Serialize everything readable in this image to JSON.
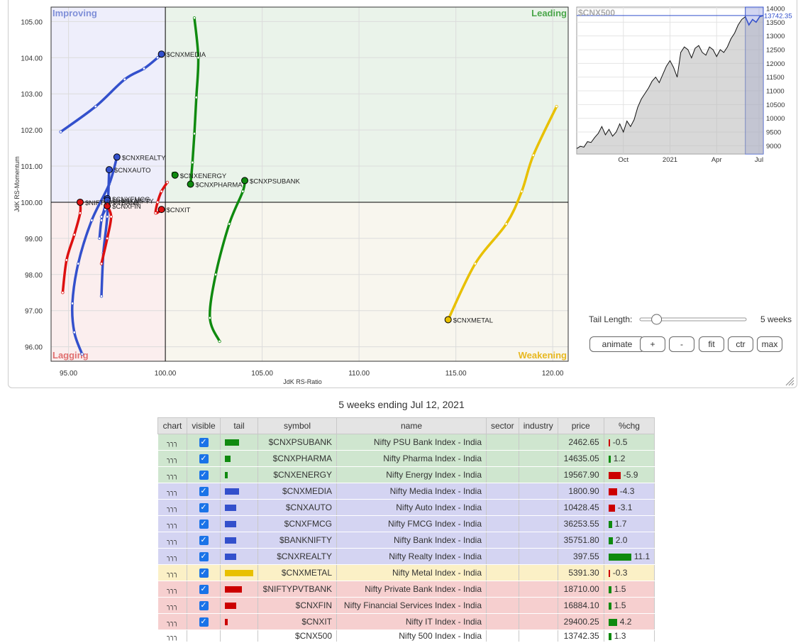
{
  "chart_data": [
    {
      "type": "scatter",
      "subtype": "relative-rotation-graph",
      "xlabel": "JdK RS-Ratio",
      "ylabel": "JdK RS-Momentum",
      "xlim": [
        94.1,
        120.8
      ],
      "ylim": [
        95.6,
        105.4
      ],
      "x_ticks": [
        "95.00",
        "100.00",
        "105.00",
        "110.00",
        "115.00",
        "120.00"
      ],
      "y_ticks": [
        "96.00",
        "97.00",
        "98.00",
        "99.00",
        "100.00",
        "101.00",
        "102.00",
        "103.00",
        "104.00",
        "105.00"
      ],
      "center": [
        100,
        100
      ],
      "quadrants": [
        {
          "name": "Improving",
          "position": "top-left",
          "color": "#7f8fd8",
          "fill": "#eeeefb"
        },
        {
          "name": "Leading",
          "position": "top-right",
          "color": "#4aa64a",
          "fill": "#eaf3ea"
        },
        {
          "name": "Lagging",
          "position": "bottom-left",
          "color": "#e07070",
          "fill": "#fbeeee"
        },
        {
          "name": "Weakening",
          "position": "bottom-right",
          "color": "#e8b820",
          "fill": "#f8f6ee"
        }
      ],
      "series": [
        {
          "name": "$CNXMEDIA",
          "color": "#3350cc",
          "points": [
            [
              94.6,
              101.95
            ],
            [
              96.4,
              102.65
            ],
            [
              97.9,
              103.4
            ],
            [
              98.9,
              103.7
            ],
            [
              99.6,
              104.0
            ],
            [
              99.8,
              104.1
            ]
          ]
        },
        {
          "name": "$CNXREALTY",
          "color": "#3350cc",
          "points": [
            [
              95.7,
              95.8
            ],
            [
              95.3,
              96.4
            ],
            [
              95.2,
              97.2
            ],
            [
              95.5,
              98.3
            ],
            [
              96.2,
              99.5
            ],
            [
              97.1,
              100.5
            ],
            [
              97.5,
              101.25
            ]
          ]
        },
        {
          "name": "$CNXAUTO",
          "color": "#3350cc",
          "points": [
            [
              96.7,
              97.4
            ],
            [
              96.8,
              98.6
            ],
            [
              97.0,
              99.6
            ],
            [
              97.1,
              100.9
            ]
          ]
        },
        {
          "name": "$CNXFMCG",
          "color": "#3350cc",
          "points": [
            [
              96.6,
              99.0
            ],
            [
              96.7,
              99.5
            ],
            [
              96.9,
              99.9
            ],
            [
              97.0,
              100.1
            ]
          ]
        },
        {
          "name": "$BANKNIFTY",
          "color": "#3350cc",
          "points": [
            [
              96.7,
              99.6
            ],
            [
              96.9,
              99.8
            ],
            [
              97.0,
              100.05
            ]
          ]
        },
        {
          "name": "$CNXPSUBANK",
          "color": "#0f8a0f",
          "points": [
            [
              102.8,
              96.15
            ],
            [
              102.3,
              96.8
            ],
            [
              102.6,
              98.0
            ],
            [
              103.3,
              99.4
            ],
            [
              104.0,
              100.3
            ],
            [
              104.1,
              100.6
            ]
          ]
        },
        {
          "name": "$CNXPHARMA",
          "color": "#0f8a0f",
          "points": [
            [
              101.5,
              105.1
            ],
            [
              101.7,
              104.0
            ],
            [
              101.6,
              102.9
            ],
            [
              101.5,
              101.9
            ],
            [
              101.4,
              101.1
            ],
            [
              101.3,
              100.5
            ]
          ]
        },
        {
          "name": "$CNXENERGY",
          "color": "#0f8a0f",
          "points": [
            [
              100.4,
              100.8
            ],
            [
              100.5,
              100.75
            ]
          ]
        },
        {
          "name": "$CNXMETAL",
          "color": "#e8c000",
          "points": [
            [
              120.2,
              102.65
            ],
            [
              119.0,
              101.3
            ],
            [
              118.4,
              100.3
            ],
            [
              117.6,
              99.4
            ],
            [
              116.0,
              98.3
            ],
            [
              114.6,
              96.75
            ]
          ]
        },
        {
          "name": "$NIFTYPVTBANK",
          "color": "#dd1010",
          "points": [
            [
              94.7,
              97.5
            ],
            [
              94.9,
              98.4
            ],
            [
              95.3,
              99.1
            ],
            [
              95.6,
              99.7
            ],
            [
              95.6,
              100.0
            ]
          ]
        },
        {
          "name": "$CNXFIN",
          "color": "#dd1010",
          "points": [
            [
              96.7,
              98.3
            ],
            [
              97.0,
              99.0
            ],
            [
              97.2,
              99.6
            ],
            [
              97.0,
              99.9
            ]
          ]
        },
        {
          "name": "$CNXIT",
          "color": "#dd1010",
          "points": [
            [
              100.1,
              100.55
            ],
            [
              99.8,
              100.3
            ],
            [
              99.6,
              100.0
            ],
            [
              99.5,
              99.7
            ],
            [
              99.8,
              99.8
            ]
          ]
        }
      ],
      "labels": [
        {
          "text": "$CNXMEDIA",
          "series": "$CNXMEDIA"
        },
        {
          "text": "$CNXREALTY",
          "series": "$CNXREALTY"
        },
        {
          "text": "$CNXENERGY",
          "series": "$CNXENERGY"
        },
        {
          "text": "$CNXPHARMA",
          "series": "$CNXPHARMA"
        },
        {
          "text": "$CNXPSUBANK",
          "series": "$CNXPSUBANK"
        },
        {
          "text": "$CNXFMCG",
          "series": "$CNXFMCG"
        },
        {
          "text": "$CNXAUTO",
          "series": "$CNXAUTO"
        },
        {
          "text": "$BANKNIFTY",
          "series": "$BANKNIFTY"
        },
        {
          "text": "$NIFTYPVTBANK",
          "series": "$NIFTYPVTBANK"
        },
        {
          "text": "$CNXFIN",
          "series": "$CNXFIN"
        },
        {
          "text": "$CNXIT",
          "series": "$CNXIT"
        },
        {
          "text": "$CNXMETAL",
          "series": "$CNXMETAL"
        }
      ]
    },
    {
      "type": "area",
      "title": "$CNX500",
      "current_value": "13742.35",
      "x_ticks": [
        "Oct",
        "2021",
        "Apr",
        "Jul"
      ],
      "y_ticks": [
        "9000",
        "9500",
        "10000",
        "10500",
        "11000",
        "11500",
        "12000",
        "12500",
        "13000",
        "13500",
        "14000"
      ],
      "ylim": [
        8700,
        14050
      ],
      "values": [
        8900,
        8980,
        8950,
        9150,
        9120,
        9300,
        9450,
        9700,
        9400,
        9600,
        9350,
        9500,
        9800,
        9500,
        9900,
        9700,
        9950,
        10400,
        10700,
        10900,
        11100,
        11350,
        11500,
        11300,
        11600,
        11900,
        12100,
        11850,
        11500,
        12400,
        12600,
        12500,
        12200,
        12550,
        12650,
        12400,
        12300,
        12600,
        12500,
        12250,
        12500,
        12400,
        12600,
        12900,
        13100,
        13400,
        13600,
        13700,
        13400,
        13600,
        13500,
        13700,
        13742
      ],
      "highlight_window": "last 5 weeks"
    }
  ],
  "controls": {
    "tail_length_label": "Tail Length:",
    "tail_length_value": "5 weeks",
    "tail_length_fraction": 0.1,
    "buttons": [
      "animate",
      "+",
      "-",
      "fit",
      "ctr",
      "max"
    ]
  },
  "caption": "5 weeks ending Jul 12, 2021",
  "table": {
    "headers": [
      "chart",
      "visible",
      "tail",
      "symbol",
      "name",
      "sector",
      "industry",
      "price",
      "%chg"
    ],
    "rows": [
      {
        "symbol": "$CNXPSUBANK",
        "name": "Nifty PSU Bank Index - India",
        "price": "2462.65",
        "chg": "-0.5",
        "tail": 5,
        "group": "leading",
        "visible": true
      },
      {
        "symbol": "$CNXPHARMA",
        "name": "Nifty Pharma Index - India",
        "price": "14635.05",
        "chg": "1.2",
        "tail": 2,
        "group": "leading",
        "visible": true
      },
      {
        "symbol": "$CNXENERGY",
        "name": "Nifty Energy Index - India",
        "price": "19567.90",
        "chg": "-5.9",
        "tail": 1,
        "group": "leading",
        "visible": true
      },
      {
        "symbol": "$CNXMEDIA",
        "name": "Nifty Media Index - India",
        "price": "1800.90",
        "chg": "-4.3",
        "tail": 5,
        "group": "improving",
        "visible": true
      },
      {
        "symbol": "$CNXAUTO",
        "name": "Nifty Auto Index - India",
        "price": "10428.45",
        "chg": "-3.1",
        "tail": 4,
        "group": "improving",
        "visible": true
      },
      {
        "symbol": "$CNXFMCG",
        "name": "Nifty FMCG Index - India",
        "price": "36253.55",
        "chg": "1.7",
        "tail": 4,
        "group": "improving",
        "visible": true
      },
      {
        "symbol": "$BANKNIFTY",
        "name": "Nifty Bank Index - India",
        "price": "35751.80",
        "chg": "2.0",
        "tail": 4,
        "group": "improving",
        "visible": true
      },
      {
        "symbol": "$CNXREALTY",
        "name": "Nifty Realty Index - India",
        "price": "397.55",
        "chg": "11.1",
        "tail": 4,
        "group": "improving",
        "visible": true
      },
      {
        "symbol": "$CNXMETAL",
        "name": "Nifty Metal Index - India",
        "price": "5391.30",
        "chg": "-0.3",
        "tail": 10,
        "group": "weakening",
        "visible": true
      },
      {
        "symbol": "$NIFTYPVTBANK",
        "name": "Nifty Private Bank Index - India",
        "price": "18710.00",
        "chg": "1.5",
        "tail": 6,
        "group": "lagging",
        "visible": true
      },
      {
        "symbol": "$CNXFIN",
        "name": "Nifty Financial Services Index - India",
        "price": "16884.10",
        "chg": "1.5",
        "tail": 4,
        "group": "lagging",
        "visible": true
      },
      {
        "symbol": "$CNXIT",
        "name": "Nifty IT Index - India",
        "price": "29400.25",
        "chg": "4.2",
        "tail": 1,
        "group": "lagging",
        "visible": true
      },
      {
        "symbol": "$CNX500",
        "name": "Nifty 500 Index - India",
        "price": "13742.35",
        "chg": "1.3",
        "tail": 0,
        "group": "benchmark",
        "visible": false
      }
    ]
  },
  "colors": {
    "leading": "#cfe6cf",
    "improving": "#d4d4f2",
    "weakening": "#fbf0c6",
    "lagging": "#f6cfcf",
    "benchmark": "#ffffff",
    "bar_leading": "#0f8a0f",
    "bar_improving": "#3350cc",
    "bar_weakening": "#e8c000",
    "bar_lagging": "#cc0000",
    "chg_up": "#0f8a0f",
    "chg_down": "#cc0000"
  },
  "icons": {
    "chart": "candlestick-icon",
    "resize": "resize-grip-icon",
    "checkbox": "checkmark-icon"
  }
}
